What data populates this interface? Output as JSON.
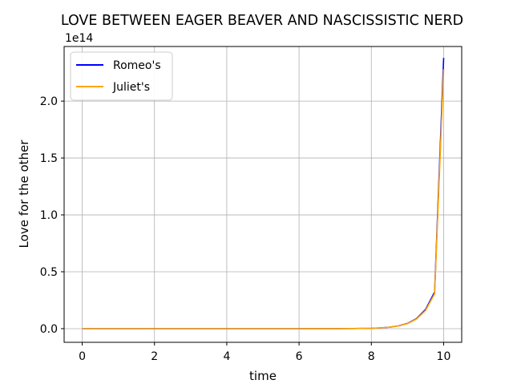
{
  "chart_data": {
    "type": "line",
    "title": "LOVE BETWEEN EAGER BEAVER AND NASCISSISTIC NERD",
    "xlabel": "time",
    "ylabel": "Love for the other",
    "y_scale_label": "1e14",
    "xlim": [
      -0.5,
      10.5
    ],
    "ylim": [
      -0.12,
      2.48
    ],
    "x_ticks": [
      0,
      2,
      4,
      6,
      8,
      10
    ],
    "x_tick_labels": [
      "0",
      "2",
      "4",
      "6",
      "8",
      "10"
    ],
    "y_ticks": [
      0.0,
      0.5,
      1.0,
      1.5,
      2.0
    ],
    "y_tick_labels": [
      "0.0",
      "0.5",
      "1.0",
      "1.5",
      "2.0"
    ],
    "grid": true,
    "legend_position": "top-left",
    "series": [
      {
        "name": "Romeo's",
        "color": "#0000ff",
        "x": [
          0,
          1,
          2,
          3,
          4,
          5,
          6,
          6.5,
          7,
          7.5,
          8,
          8.25,
          8.5,
          8.75,
          9,
          9.25,
          9.5,
          9.75,
          10
        ],
        "y": [
          0,
          0,
          0,
          0,
          0,
          0,
          0,
          0.0002,
          0.0005,
          0.0013,
          0.0036,
          0.0069,
          0.0128,
          0.0242,
          0.046,
          0.088,
          0.168,
          0.321,
          2.38
        ]
      },
      {
        "name": "Juliet's",
        "color": "#ffa500",
        "x": [
          0,
          1,
          2,
          3,
          4,
          5,
          6,
          6.5,
          7,
          7.5,
          8,
          8.25,
          8.5,
          8.75,
          9,
          9.25,
          9.5,
          9.75,
          10
        ],
        "y": [
          0,
          0,
          0,
          0,
          0,
          0,
          0,
          0.0002,
          0.0005,
          0.0013,
          0.0036,
          0.0068,
          0.0124,
          0.0234,
          0.044,
          0.084,
          0.16,
          0.306,
          2.28
        ]
      }
    ]
  }
}
